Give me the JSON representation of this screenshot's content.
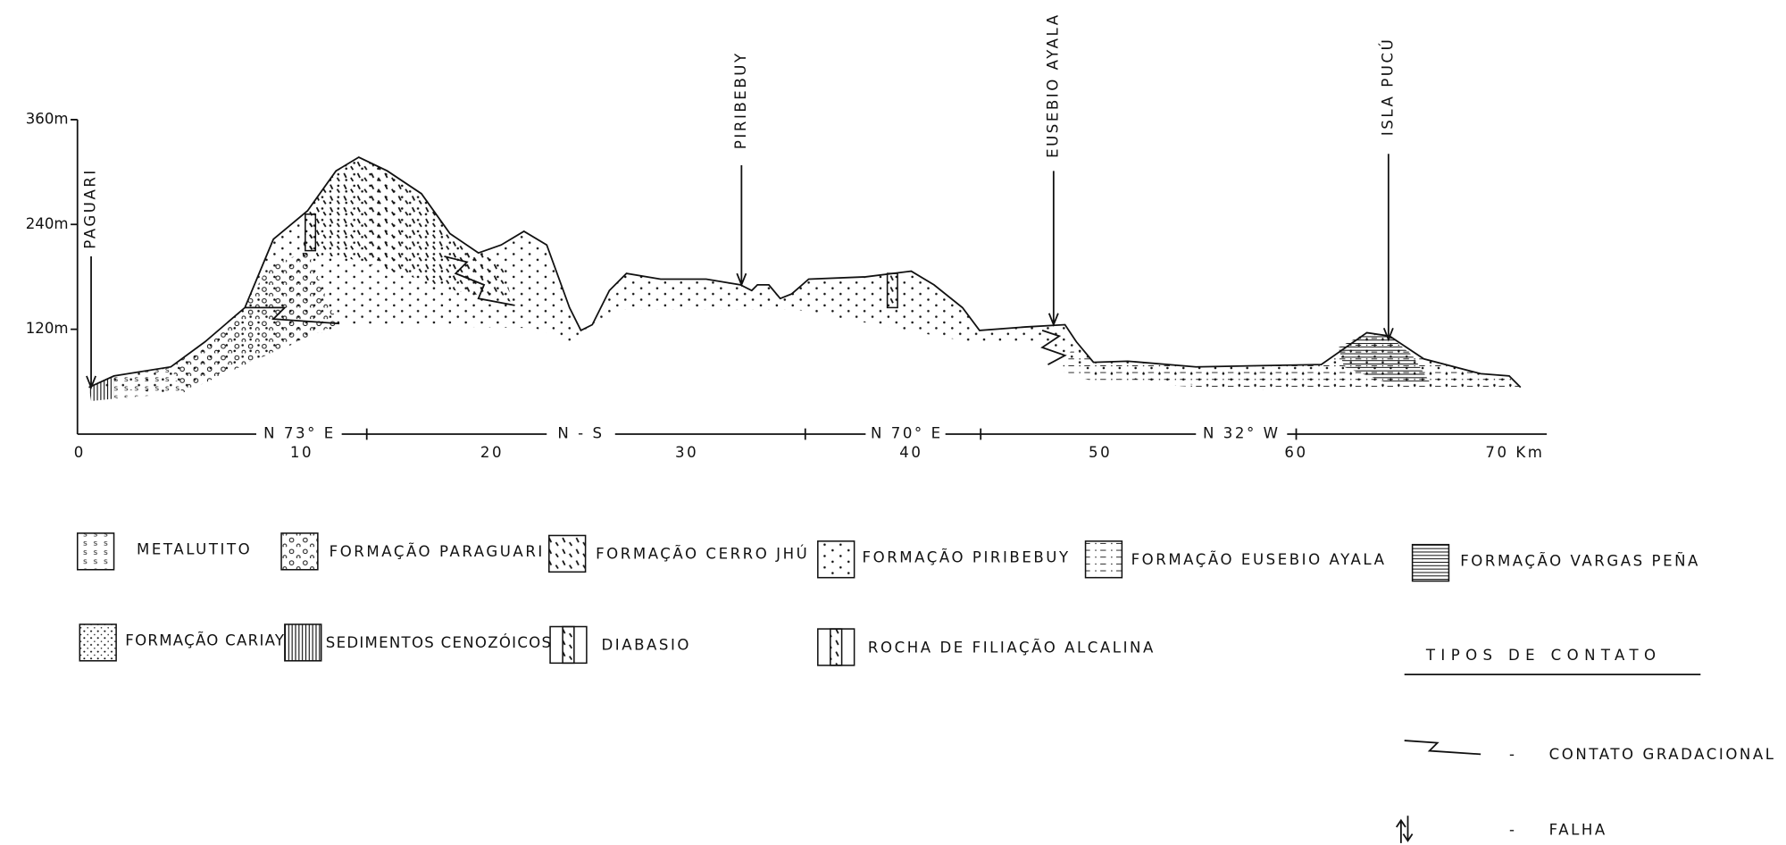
{
  "profile": {
    "y_labels": [
      "360m",
      "240m",
      "120m"
    ],
    "x_labels": [
      "0",
      "10",
      "20",
      "30",
      "40",
      "50",
      "60",
      "70 Km"
    ],
    "directions": [
      "N 73° E",
      "N - S",
      "N 70° E",
      "N 32° W"
    ],
    "localities": [
      "PAGUARI",
      "PIRIBEBUY",
      "EUSEBIO AYALA",
      "ISLA PUCÚ"
    ]
  },
  "legend": {
    "items": [
      "METALUTITO",
      "FORMAÇÃO PARAGUARI",
      "FORMAÇÃO CERRO JHÚ",
      "FORMAÇÃO PIRIBEBUY",
      "FORMAÇÃO EUSEBIO AYALA",
      "FORMAÇÃO VARGAS PEÑA",
      "FORMAÇÃO CARIAY",
      "SEDIMENTOS CENOZÓICOS",
      "DIABASIO",
      "ROCHA DE FILIAÇÃO ALCALINA"
    ]
  },
  "contacts": {
    "title": "TIPOS DE CONTATO",
    "dash": "-",
    "items": [
      "CONTATO GRADACIONAL",
      "FALHA"
    ]
  }
}
